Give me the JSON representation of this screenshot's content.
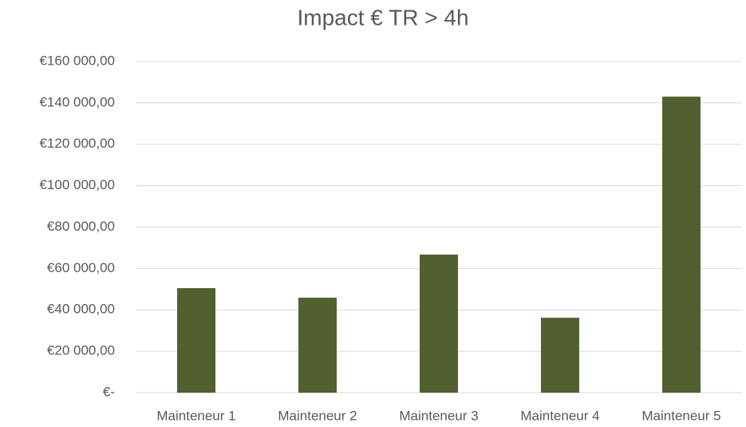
{
  "chart_data": {
    "type": "bar",
    "title": "Impact € TR > 4h",
    "categories": [
      "Mainteneur 1",
      "Mainteneur 2",
      "Mainteneur 3",
      "Mainteneur 4",
      "Mainteneur 5"
    ],
    "values": [
      50500,
      45900,
      66700,
      36200,
      143000
    ],
    "color": "#526030",
    "ylim": [
      0,
      160000
    ],
    "yticks": [
      {
        "value": 0,
        "label": "€-"
      },
      {
        "value": 20000,
        "label": "€20 000,00"
      },
      {
        "value": 40000,
        "label": "€40 000,00"
      },
      {
        "value": 60000,
        "label": "€60 000,00"
      },
      {
        "value": 80000,
        "label": "€80 000,00"
      },
      {
        "value": 100000,
        "label": "€100 000,00"
      },
      {
        "value": 120000,
        "label": "€120 000,00"
      },
      {
        "value": 140000,
        "label": "€140 000,00"
      },
      {
        "value": 160000,
        "label": "€160 000,00"
      }
    ],
    "grid": true
  }
}
